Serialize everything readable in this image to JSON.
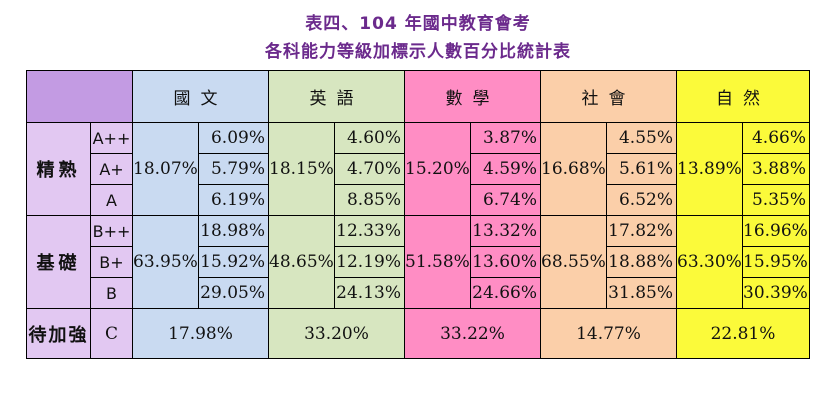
{
  "title_line1": "表四、104 年國中教育會考",
  "title_line2": "各科能力等級加標示人數百分比統計表",
  "subjects": [
    "國文",
    "英語",
    "數學",
    "社會",
    "自然"
  ],
  "groups": {
    "excellent": {
      "label": "精熟",
      "levels": [
        "A++",
        "A+",
        "A"
      ],
      "totals": [
        "18.07%",
        "18.15%",
        "15.20%",
        "16.68%",
        "13.89%"
      ],
      "values": [
        [
          "6.09%",
          "4.60%",
          "3.87%",
          "4.55%",
          "4.66%"
        ],
        [
          "5.79%",
          "4.70%",
          "4.59%",
          "5.61%",
          "3.88%"
        ],
        [
          "6.19%",
          "8.85%",
          "6.74%",
          "6.52%",
          "5.35%"
        ]
      ]
    },
    "basic": {
      "label": "基礎",
      "levels": [
        "B++",
        "B+",
        "B"
      ],
      "totals": [
        "63.95%",
        "48.65%",
        "51.58%",
        "68.55%",
        "63.30%"
      ],
      "values": [
        [
          "18.98%",
          "12.33%",
          "13.32%",
          "17.82%",
          "16.96%"
        ],
        [
          "15.92%",
          "12.19%",
          "13.60%",
          "18.88%",
          "15.95%"
        ],
        [
          "29.05%",
          "24.13%",
          "24.66%",
          "31.85%",
          "30.39%"
        ]
      ]
    },
    "needs": {
      "label": "待加強",
      "level": "C",
      "values": [
        "17.98%",
        "33.20%",
        "33.22%",
        "14.77%",
        "22.81%"
      ]
    }
  },
  "colors": {
    "group_header": "#c39be3",
    "level_cells": "#e2c8f2",
    "chinese": "#c9daf1",
    "english": "#d7e6c0",
    "math": "#ff8dc4",
    "social": "#fbcfa9",
    "science": "#fbfa3a",
    "title": "#6b2a8c"
  }
}
